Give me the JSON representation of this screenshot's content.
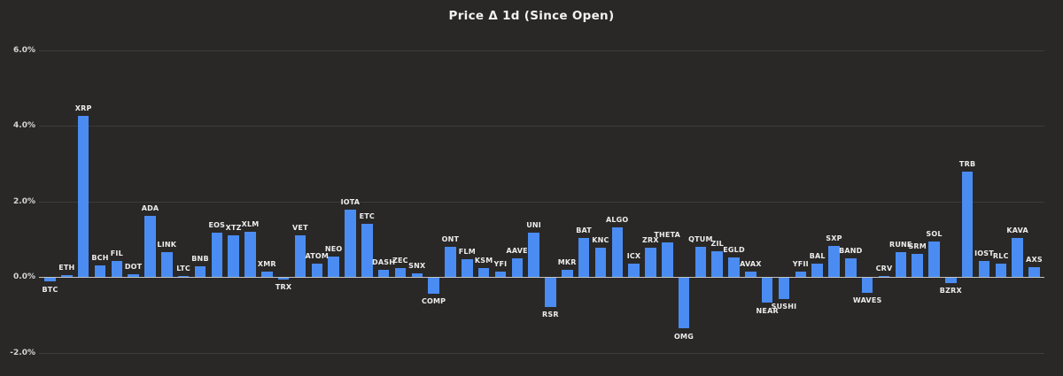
{
  "chart_data": {
    "type": "bar",
    "title": "Price Δ 1d (Since Open)",
    "xlabel": "",
    "ylabel": "",
    "value_unit": "%",
    "ylim": [
      -2.7,
      6.9
    ],
    "grid": true,
    "legend": false,
    "yticks": [
      {
        "label": "6.0%",
        "value": 6.0
      },
      {
        "label": "4.0%",
        "value": 4.0
      },
      {
        "label": "2.0%",
        "value": 2.0
      },
      {
        "label": "0.0%",
        "value": 0.0
      },
      {
        "label": "-2.0%",
        "value": -2.0
      }
    ],
    "categories": [
      "BTC",
      "ETH",
      "XRP",
      "BCH",
      "FIL",
      "DOT",
      "ADA",
      "LINK",
      "LTC",
      "BNB",
      "EOS",
      "XTZ",
      "XLM",
      "XMR",
      "TRX",
      "VET",
      "ATOM",
      "NEO",
      "IOTA",
      "ETC",
      "DASH",
      "ZEC",
      "SNX",
      "COMP",
      "ONT",
      "FLM",
      "KSM",
      "YFI",
      "AAVE",
      "UNI",
      "RSR",
      "MKR",
      "BAT",
      "KNC",
      "ALGO",
      "ICX",
      "ZRX",
      "THETA",
      "OMG",
      "QTUM",
      "ZIL",
      "EGLD",
      "AVAX",
      "NEAR",
      "SUSHI",
      "YFII",
      "BAL",
      "SXP",
      "BAND",
      "WAVES",
      "CRV",
      "RUNE",
      "SRM",
      "SOL",
      "BZRX",
      "TRB",
      "IOST",
      "RLC",
      "KAVA",
      "AXS"
    ],
    "values": [
      -0.12,
      0.05,
      4.26,
      0.31,
      0.42,
      0.08,
      1.62,
      0.66,
      0.02,
      0.29,
      1.17,
      1.11,
      1.2,
      0.15,
      -0.06,
      1.1,
      0.37,
      0.55,
      1.79,
      1.41,
      0.2,
      0.24,
      0.1,
      -0.44,
      0.8,
      0.47,
      0.24,
      0.15,
      0.5,
      1.18,
      -0.79,
      0.2,
      1.03,
      0.78,
      1.31,
      0.36,
      0.78,
      0.92,
      -1.36,
      0.81,
      0.69,
      0.52,
      0.16,
      -0.68,
      -0.58,
      0.16,
      0.37,
      0.83,
      0.5,
      -0.42,
      0.02,
      0.67,
      0.62,
      0.95,
      -0.15,
      2.79,
      0.43,
      0.35,
      1.05,
      0.27
    ]
  },
  "theme": {
    "background": "#292827",
    "bar_color": "#4a8cf2",
    "gridline_color": "#3d3c3a",
    "zero_line_color": "#c2c2c2",
    "title_color": "#f2f2f2",
    "tick_label_color": "#d4d4d4",
    "bar_label_color": "#ededed"
  }
}
